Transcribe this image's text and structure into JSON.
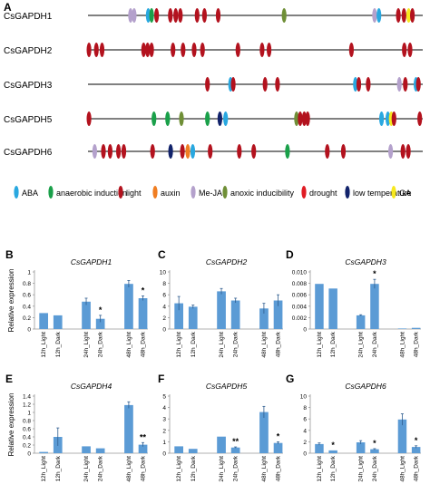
{
  "panel_letters": {
    "A": "A",
    "B": "B",
    "C": "C",
    "D": "D",
    "E": "E",
    "F": "F",
    "G": "G"
  },
  "colors": {
    "ABA": "#29a8e0",
    "anaerobic induction": "#1aa04a",
    "light": "#b3121e",
    "auxin": "#f07e22",
    "Me-JA": "#b4a1cc",
    "anoxic inducibility": "#6f8f37",
    "drought": "#e01c24",
    "low temperature": "#12236b",
    "GA": "#f7e81f",
    "bar": "#5b9bd5",
    "errorbar": "#2f5d8f"
  },
  "legend": [
    {
      "key": "ABA",
      "label": "ABA"
    },
    {
      "key": "anaerobic induction",
      "label": "anaerobic induction"
    },
    {
      "key": "light",
      "label": "light"
    },
    {
      "key": "auxin",
      "label": "auxin"
    },
    {
      "key": "Me-JA",
      "label": "Me-JA"
    },
    {
      "key": "anoxic inducibility",
      "label": "anoxic inducibility"
    },
    {
      "key": "drought",
      "label": "drought"
    },
    {
      "key": "low temperature",
      "label": "low temperature"
    },
    {
      "key": "GA",
      "label": "GA"
    }
  ],
  "promoters": [
    {
      "gene": "CsGAPDH1",
      "elements": [
        [
          "Me-JA",
          0.127
        ],
        [
          "Me-JA",
          0.138
        ],
        [
          "ABA",
          0.18
        ],
        [
          "anaerobic induction",
          0.19
        ],
        [
          "light",
          0.205
        ],
        [
          "light",
          0.246
        ],
        [
          "light",
          0.262
        ],
        [
          "light",
          0.276
        ],
        [
          "light",
          0.326
        ],
        [
          "light",
          0.348
        ],
        [
          "light",
          0.389
        ],
        [
          "anoxic inducibility",
          0.586
        ],
        [
          "Me-JA",
          0.856
        ],
        [
          "ABA",
          0.869
        ],
        [
          "light",
          0.927
        ],
        [
          "light",
          0.944
        ],
        [
          "GA",
          0.958
        ],
        [
          "light",
          0.969
        ]
      ]
    },
    {
      "gene": "CsGAPDH2",
      "elements": [
        [
          "light",
          0.003
        ],
        [
          "light",
          0.025
        ],
        [
          "light",
          0.042
        ],
        [
          "light",
          0.166
        ],
        [
          "light",
          0.178
        ],
        [
          "light",
          0.19
        ],
        [
          "light",
          0.254
        ],
        [
          "light",
          0.284
        ],
        [
          "light",
          0.317
        ],
        [
          "light",
          0.342
        ],
        [
          "light",
          0.448
        ],
        [
          "light",
          0.52
        ],
        [
          "light",
          0.541
        ],
        [
          "light",
          0.787
        ],
        [
          "light",
          0.945
        ],
        [
          "light",
          0.962
        ]
      ]
    },
    {
      "gene": "CsGAPDH3",
      "elements": [
        [
          "light",
          0.357
        ],
        [
          "ABA",
          0.426
        ],
        [
          "light",
          0.434
        ],
        [
          "light",
          0.529
        ],
        [
          "light",
          0.566
        ],
        [
          "ABA",
          0.799
        ],
        [
          "light",
          0.809
        ],
        [
          "light",
          0.837
        ],
        [
          "Me-JA",
          0.93
        ],
        [
          "light",
          0.948
        ],
        [
          "ABA",
          0.98
        ],
        [
          "light",
          0.987
        ]
      ]
    },
    {
      "gene": "CsGAPDH5",
      "elements": [
        [
          "light",
          0.003
        ],
        [
          "anaerobic induction",
          0.197
        ],
        [
          "anaerobic induction",
          0.238
        ],
        [
          "anoxic inducibility",
          0.279
        ],
        [
          "anaerobic induction",
          0.357
        ],
        [
          "low temperature",
          0.394
        ],
        [
          "ABA",
          0.411
        ],
        [
          "anoxic inducibility",
          0.623
        ],
        [
          "light",
          0.634
        ],
        [
          "light",
          0.646
        ],
        [
          "light",
          0.656
        ],
        [
          "ABA",
          0.877
        ],
        [
          "ABA",
          0.896
        ],
        [
          "GA",
          0.906
        ],
        [
          "light",
          0.914
        ],
        [
          "light",
          0.991
        ]
      ]
    },
    {
      "gene": "CsGAPDH6",
      "elements": [
        [
          "Me-JA",
          0.02
        ],
        [
          "light",
          0.046
        ],
        [
          "light",
          0.066
        ],
        [
          "light",
          0.091
        ],
        [
          "light",
          0.107
        ],
        [
          "light",
          0.193
        ],
        [
          "low temperature",
          0.247
        ],
        [
          "light",
          0.282
        ],
        [
          "auxin",
          0.298
        ],
        [
          "ABA",
          0.313
        ],
        [
          "light",
          0.365
        ],
        [
          "light",
          0.452
        ],
        [
          "light",
          0.495
        ],
        [
          "anaerobic induction",
          0.596
        ],
        [
          "light",
          0.715
        ],
        [
          "light",
          0.763
        ],
        [
          "Me-JA",
          0.904
        ],
        [
          "light",
          0.941
        ],
        [
          "light",
          0.957
        ]
      ]
    }
  ],
  "chart_data": [
    {
      "panel": "B",
      "type": "bar",
      "title": "CsGAPDH1",
      "ylabel": "Relative expression",
      "categories": [
        "12h_Light",
        "12h_Dark",
        "24h_Light",
        "24h_Dark",
        "48h_Light",
        "48h_Dark"
      ],
      "values": [
        0.28,
        0.24,
        0.48,
        0.18,
        0.79,
        0.54
      ],
      "errors": [
        0.0,
        0.0,
        0.06,
        0.06,
        0.06,
        0.04
      ],
      "significance": [
        "",
        "",
        "",
        "*",
        "",
        "*"
      ],
      "ylim": [
        0,
        1
      ],
      "ticks": [
        0,
        0.2,
        0.4,
        0.6,
        0.8,
        1
      ]
    },
    {
      "panel": "C",
      "type": "bar",
      "title": "CsGAPDH2",
      "ylabel": "",
      "categories": [
        "12h_Light",
        "12h_Dark",
        "24h_Light",
        "24h_Dark",
        "48h_Light",
        "48h_Dark"
      ],
      "values": [
        4.5,
        3.9,
        6.6,
        5.0,
        3.6,
        5.0
      ],
      "errors": [
        1.2,
        0.3,
        0.5,
        0.4,
        0.9,
        1.0
      ],
      "significance": [
        "",
        "",
        "",
        "",
        "",
        ""
      ],
      "ylim": [
        0,
        10
      ],
      "ticks": [
        0,
        2,
        4,
        6,
        8,
        10
      ]
    },
    {
      "panel": "D",
      "type": "bar",
      "title": "CsGAPDH3",
      "ylabel": "",
      "categories": [
        "12h_Light",
        "12h_Dark",
        "24h_Light",
        "24h_Dark",
        "48h_Light",
        "48h_Dark"
      ],
      "values": [
        0.0079,
        0.0071,
        0.0024,
        0.0079,
        0.0001,
        0.0002
      ],
      "errors": [
        0.0,
        0.0,
        0.0001,
        0.0008,
        0.0,
        0.0
      ],
      "significance": [
        "",
        "",
        "",
        "*",
        "",
        ""
      ],
      "ylim": [
        0,
        0.01
      ],
      "ticks": [
        0,
        0.002,
        0.004,
        0.006,
        0.008,
        0.01
      ]
    },
    {
      "panel": "E",
      "type": "bar",
      "title": "CsGAPDH4",
      "ylabel": "Relative expression",
      "categories": [
        "12h_Light",
        "12h_Dark",
        "24h_Light",
        "24h_Dark",
        "48h_Light",
        "48h_Dark"
      ],
      "values": [
        0.03,
        0.4,
        0.17,
        0.12,
        1.18,
        0.21
      ],
      "errors": [
        0.0,
        0.22,
        0.0,
        0.0,
        0.08,
        0.05
      ],
      "significance": [
        "",
        "",
        "",
        "",
        "",
        "**"
      ],
      "ylim": [
        0,
        1.4
      ],
      "ticks": [
        0,
        0.2,
        0.4,
        0.6,
        0.8,
        1,
        1.2,
        1.4
      ]
    },
    {
      "panel": "F",
      "type": "bar",
      "title": "CsGAPDH5",
      "ylabel": "",
      "categories": [
        "12h_Light",
        "12h_Dark",
        "24h_Light",
        "24h_Dark",
        "48h_Light",
        "48h_Dark"
      ],
      "values": [
        0.6,
        0.38,
        1.45,
        0.5,
        3.6,
        0.9
      ],
      "errors": [
        0.0,
        0.0,
        0.0,
        0.05,
        0.5,
        0.1
      ],
      "significance": [
        "",
        "",
        "",
        "**",
        "",
        "*"
      ],
      "ylim": [
        0,
        5
      ],
      "ticks": [
        0,
        1,
        2,
        3,
        4,
        5
      ]
    },
    {
      "panel": "G",
      "type": "bar",
      "title": "CsGAPDH6",
      "ylabel": "",
      "categories": [
        "12h_Light",
        "12h_Dark",
        "24h_Light",
        "24h_Dark",
        "48h_Light",
        "48h_Dark"
      ],
      "values": [
        1.6,
        0.5,
        1.9,
        0.7,
        5.9,
        1.1
      ],
      "errors": [
        0.2,
        0.0,
        0.3,
        0.1,
        1.0,
        0.2
      ],
      "significance": [
        "",
        "*",
        "",
        "*",
        "",
        "*"
      ],
      "ylim": [
        0,
        10
      ],
      "ticks": [
        0,
        2,
        4,
        6,
        8,
        10
      ]
    }
  ]
}
